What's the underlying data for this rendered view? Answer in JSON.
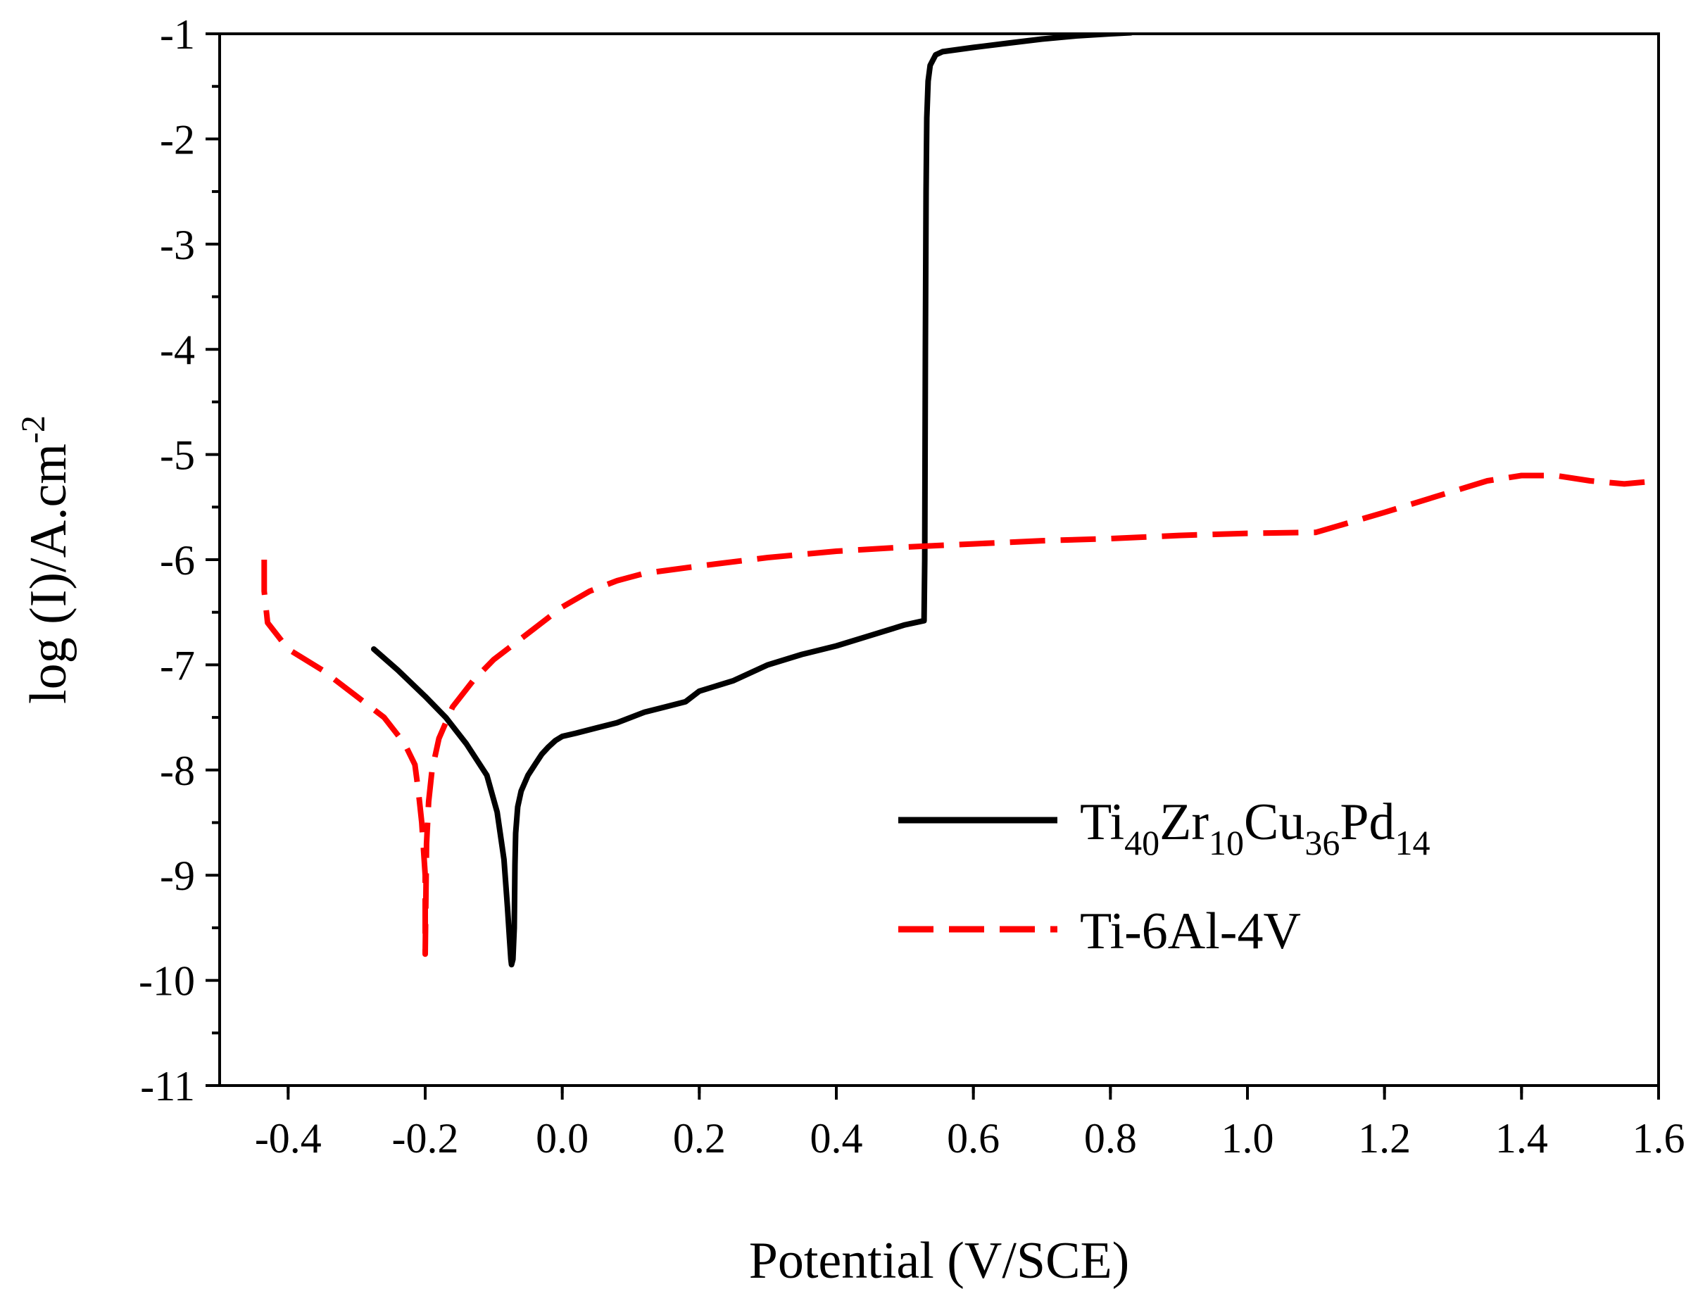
{
  "chart_data": {
    "type": "line",
    "xlabel": "Potential (V/SCE)",
    "ylabel": {
      "main": "log (I)/A.cm",
      "superscript": "-2"
    },
    "xlim": [
      -0.5,
      1.6
    ],
    "ylim": [
      -11,
      -1
    ],
    "x_ticks": [
      -0.4,
      -0.2,
      0.0,
      0.2,
      0.4,
      0.6,
      0.8,
      1.0,
      1.2,
      1.4,
      1.6
    ],
    "x_tick_labels": [
      "-0.4",
      "-0.2",
      "0.0",
      "0.2",
      "0.4",
      "0.6",
      "0.8",
      "1.0",
      "1.2",
      "1.4",
      "1.6"
    ],
    "y_ticks": [
      -1,
      -2,
      -3,
      -4,
      -5,
      -6,
      -7,
      -8,
      -9,
      -10,
      -11
    ],
    "y_tick_labels": [
      "-1",
      "-2",
      "-3",
      "-4",
      "-5",
      "-6",
      "-7",
      "-8",
      "-9",
      "-10",
      "-11"
    ],
    "grid": false,
    "legend_position": "center-right",
    "series": [
      {
        "name": "Ti40Zr10Cu36Pd14",
        "legend_parts": [
          {
            "text": "Ti",
            "sub": "40"
          },
          {
            "text": "Zr",
            "sub": "10"
          },
          {
            "text": "Cu",
            "sub": "36"
          },
          {
            "text": "Pd",
            "sub": "14"
          }
        ],
        "color": "#000000",
        "style": "solid",
        "x": [
          -0.275,
          -0.24,
          -0.2,
          -0.17,
          -0.14,
          -0.11,
          -0.095,
          -0.085,
          -0.08,
          -0.077,
          -0.075,
          -0.074,
          -0.072,
          -0.07,
          -0.069,
          -0.068,
          -0.065,
          -0.06,
          -0.05,
          -0.04,
          -0.03,
          -0.02,
          -0.01,
          0.0,
          0.02,
          0.05,
          0.08,
          0.1,
          0.12,
          0.15,
          0.18,
          0.2,
          0.25,
          0.3,
          0.35,
          0.4,
          0.45,
          0.5,
          0.528,
          0.529,
          0.53,
          0.531,
          0.532,
          0.534,
          0.537,
          0.545,
          0.555,
          0.6,
          0.65,
          0.7,
          0.75,
          0.8,
          0.83
        ],
        "y": [
          -6.85,
          -7.05,
          -7.3,
          -7.5,
          -7.75,
          -8.05,
          -8.4,
          -8.85,
          -9.3,
          -9.6,
          -9.8,
          -9.85,
          -9.8,
          -9.5,
          -8.9,
          -8.6,
          -8.35,
          -8.2,
          -8.05,
          -7.95,
          -7.85,
          -7.78,
          -7.72,
          -7.68,
          -7.65,
          -7.6,
          -7.55,
          -7.5,
          -7.45,
          -7.4,
          -7.35,
          -7.25,
          -7.15,
          -7.0,
          -6.9,
          -6.82,
          -6.72,
          -6.62,
          -6.58,
          -6.0,
          -4.0,
          -2.5,
          -1.8,
          -1.45,
          -1.3,
          -1.2,
          -1.17,
          -1.13,
          -1.09,
          -1.05,
          -1.02,
          -1.0,
          -0.99
        ]
      },
      {
        "name": "Ti-6Al-4V",
        "legend_parts": [
          {
            "text": "Ti-6Al-4V",
            "sub": ""
          }
        ],
        "color": "#ff0000",
        "style": "dashed",
        "x": [
          -0.435,
          -0.435,
          -0.43,
          -0.4,
          -0.35,
          -0.3,
          -0.26,
          -0.23,
          -0.215,
          -0.21,
          -0.205,
          -0.2,
          -0.2,
          -0.198,
          -0.195,
          -0.19,
          -0.18,
          -0.16,
          -0.13,
          -0.1,
          -0.06,
          -0.02,
          0.0,
          0.04,
          0.08,
          0.12,
          0.2,
          0.3,
          0.4,
          0.5,
          0.6,
          0.7,
          0.8,
          0.9,
          1.0,
          1.1,
          1.2,
          1.3,
          1.35,
          1.4,
          1.45,
          1.5,
          1.55,
          1.6
        ],
        "y": [
          -6.0,
          -6.3,
          -6.6,
          -6.85,
          -7.05,
          -7.3,
          -7.5,
          -7.75,
          -7.95,
          -8.2,
          -8.5,
          -9.0,
          -9.75,
          -8.7,
          -8.3,
          -8.0,
          -7.7,
          -7.4,
          -7.15,
          -6.95,
          -6.75,
          -6.55,
          -6.45,
          -6.3,
          -6.2,
          -6.13,
          -6.06,
          -5.98,
          -5.92,
          -5.88,
          -5.85,
          -5.82,
          -5.8,
          -5.77,
          -5.75,
          -5.74,
          -5.55,
          -5.35,
          -5.25,
          -5.2,
          -5.2,
          -5.25,
          -5.28,
          -5.25
        ]
      }
    ]
  }
}
